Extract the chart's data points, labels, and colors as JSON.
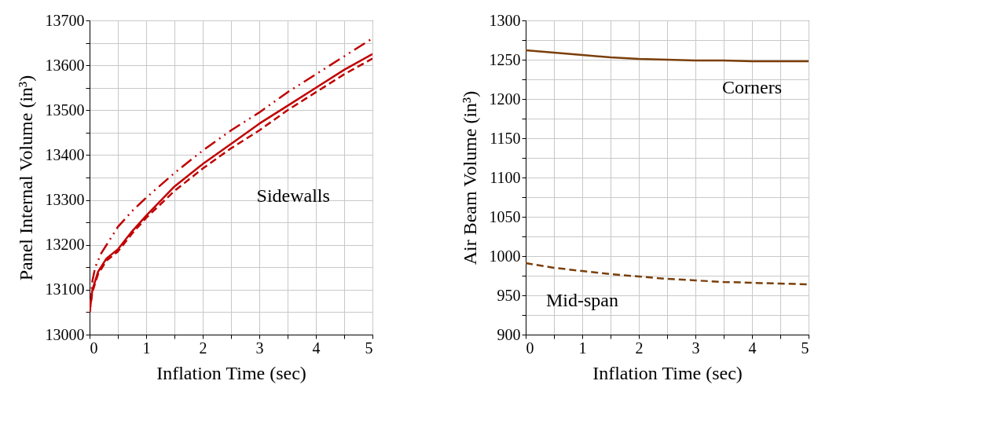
{
  "chart_data": [
    {
      "type": "line",
      "xlabel": "Inflation Time (sec)",
      "ylabel": "Panel Internal Volume (in³)",
      "annotations": [
        "Sidewalls"
      ],
      "xlim": [
        0,
        5
      ],
      "xticks": [
        0,
        {
          "value": 0.5,
          "label": null
        },
        1,
        {
          "value": 1.5,
          "label": null
        },
        2,
        {
          "value": 2.5,
          "label": null
        },
        3,
        {
          "value": 3.5,
          "label": null
        },
        4,
        {
          "value": 4.5,
          "label": null
        },
        5
      ],
      "ylim": [
        13000,
        13700
      ],
      "yticks": [
        13000,
        {
          "value": 13050,
          "label": null
        },
        13100,
        {
          "value": 13150,
          "label": null
        },
        13200,
        {
          "value": 13250,
          "label": null
        },
        13300,
        {
          "value": 13350,
          "label": null
        },
        13400,
        {
          "value": 13450,
          "label": null
        },
        13500,
        {
          "value": 13550,
          "label": null
        },
        13600,
        {
          "value": 13650,
          "label": null
        },
        13700
      ],
      "grid": true,
      "marker": "none",
      "series": [
        {
          "color": "#c00000",
          "line_style": "solid",
          "x": [
            0,
            0.05,
            0.15,
            0.3,
            0.5,
            0.75,
            1,
            1.5,
            2,
            2.5,
            3,
            3.5,
            4,
            4.5,
            5
          ],
          "values": [
            13050,
            13100,
            13140,
            13170,
            13190,
            13230,
            13265,
            13330,
            13380,
            13425,
            13470,
            13510,
            13550,
            13590,
            13625
          ]
        },
        {
          "color": "#c00000",
          "line_style": "dashed",
          "x": [
            0,
            0.05,
            0.15,
            0.3,
            0.5,
            0.75,
            1,
            1.5,
            2,
            2.5,
            3,
            3.5,
            4,
            4.5,
            5
          ],
          "values": [
            13050,
            13095,
            13135,
            13165,
            13185,
            13225,
            13260,
            13320,
            13370,
            13415,
            13455,
            13500,
            13540,
            13580,
            13615
          ]
        },
        {
          "color": "#c00000",
          "line_style": "dashdotdot",
          "x": [
            0,
            0.05,
            0.1,
            0.2,
            0.3,
            0.5,
            0.75,
            1,
            1.5,
            2,
            2.5,
            3,
            3.5,
            4,
            4.5,
            5
          ],
          "values": [
            13050,
            13120,
            13150,
            13180,
            13200,
            13240,
            13275,
            13305,
            13360,
            13410,
            13455,
            13495,
            13540,
            13580,
            13620,
            13660
          ]
        }
      ]
    },
    {
      "type": "line",
      "xlabel": "Inflation Time (sec)",
      "ylabel": "Air Beam Volume (in³)",
      "xlim": [
        0,
        5
      ],
      "xticks": [
        0,
        {
          "value": 0.5,
          "label": null
        },
        1,
        {
          "value": 1.5,
          "label": null
        },
        2,
        {
          "value": 2.5,
          "label": null
        },
        3,
        {
          "value": 3.5,
          "label": null
        },
        4,
        {
          "value": 4.5,
          "label": null
        },
        5
      ],
      "ylim": [
        900,
        1300
      ],
      "yticks": [
        900,
        {
          "value": 925,
          "label": null
        },
        950,
        {
          "value": 975,
          "label": null
        },
        1000,
        {
          "value": 1025,
          "label": null
        },
        1050,
        {
          "value": 1075,
          "label": null
        },
        1100,
        {
          "value": 1125,
          "label": null
        },
        1150,
        {
          "value": 1175,
          "label": null
        },
        1200,
        {
          "value": 1225,
          "label": null
        },
        1250,
        {
          "value": 1275,
          "label": null
        },
        1300
      ],
      "grid": true,
      "marker": "none",
      "series": [
        {
          "name": "Corners",
          "color": "#7b3f0a",
          "line_style": "solid",
          "x": [
            0,
            0.5,
            1,
            1.5,
            2,
            2.5,
            3,
            3.5,
            4,
            4.5,
            5
          ],
          "values": [
            1262,
            1259,
            1256,
            1253,
            1251,
            1250,
            1249,
            1249,
            1248,
            1248,
            1248
          ]
        },
        {
          "name": "Mid-span",
          "color": "#7b3f0a",
          "line_style": "dashed",
          "x": [
            0,
            0.5,
            1,
            1.5,
            2,
            2.5,
            3,
            3.5,
            4,
            4.5,
            5
          ],
          "values": [
            991,
            985,
            981,
            977,
            974,
            971,
            969,
            967,
            966,
            965,
            964
          ]
        }
      ]
    }
  ]
}
